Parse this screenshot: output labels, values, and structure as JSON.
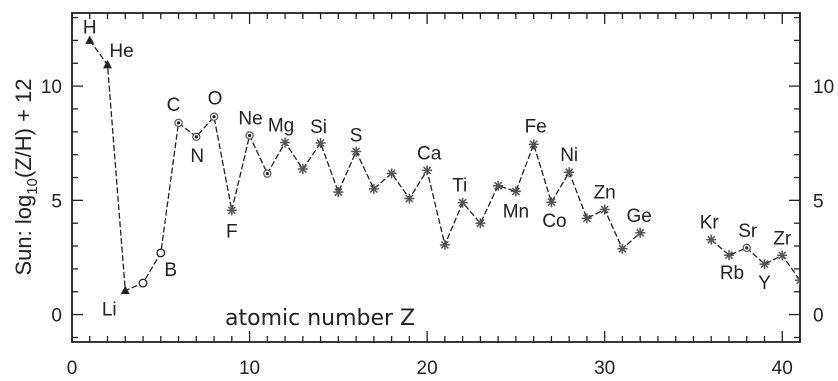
{
  "chart_data": {
    "type": "line",
    "title": "",
    "xlabel": "atomic number Z",
    "ylabel_parts": {
      "prefix": "Sun:  log",
      "subscript": "10",
      "suffix": "(Z/H)  +  12"
    },
    "xlim": [
      0,
      41
    ],
    "ylim": [
      -1.2,
      13.2
    ],
    "xticks": [
      0,
      10,
      20,
      30,
      40
    ],
    "xtick_labels": [
      "0",
      "10",
      "20",
      "30",
      "40"
    ],
    "yticks": [
      0,
      5,
      10
    ],
    "ytick_labels": [
      "0",
      "5",
      "10"
    ],
    "right_ytick_labels": [
      "0",
      "5",
      "10"
    ],
    "grid": false,
    "segments": [
      [
        {
          "z": 1,
          "y": 12.0,
          "symbol": "H",
          "marker": "triangle"
        },
        {
          "z": 2,
          "y": 10.93,
          "symbol": "He",
          "marker": "triangle"
        },
        {
          "z": 3,
          "y": 1.05,
          "symbol": "Li",
          "marker": "triangle"
        },
        {
          "z": 4,
          "y": 1.38,
          "symbol": "",
          "marker": "open-circle"
        },
        {
          "z": 5,
          "y": 2.7,
          "symbol": "B",
          "marker": "open-circle"
        },
        {
          "z": 6,
          "y": 8.39,
          "symbol": "C",
          "marker": "dot-circle"
        },
        {
          "z": 7,
          "y": 7.78,
          "symbol": "N",
          "marker": "dot-circle"
        },
        {
          "z": 8,
          "y": 8.66,
          "symbol": "O",
          "marker": "dot-circle"
        },
        {
          "z": 9,
          "y": 4.56,
          "symbol": "F",
          "marker": "star"
        },
        {
          "z": 10,
          "y": 7.84,
          "symbol": "Ne",
          "marker": "dot-circle"
        },
        {
          "z": 11,
          "y": 6.17,
          "symbol": "",
          "marker": "dot-circle"
        },
        {
          "z": 12,
          "y": 7.53,
          "symbol": "Mg",
          "marker": "star"
        },
        {
          "z": 13,
          "y": 6.37,
          "symbol": "",
          "marker": "star"
        },
        {
          "z": 14,
          "y": 7.51,
          "symbol": "Si",
          "marker": "star"
        },
        {
          "z": 15,
          "y": 5.36,
          "symbol": "",
          "marker": "star"
        },
        {
          "z": 16,
          "y": 7.14,
          "symbol": "S",
          "marker": "star"
        },
        {
          "z": 17,
          "y": 5.5,
          "symbol": "",
          "marker": "star"
        },
        {
          "z": 18,
          "y": 6.18,
          "symbol": "",
          "marker": "star"
        },
        {
          "z": 19,
          "y": 5.08,
          "symbol": "",
          "marker": "star"
        },
        {
          "z": 20,
          "y": 6.31,
          "symbol": "Ca",
          "marker": "star"
        },
        {
          "z": 21,
          "y": 3.05,
          "symbol": "",
          "marker": "star"
        },
        {
          "z": 22,
          "y": 4.9,
          "symbol": "Ti",
          "marker": "star"
        },
        {
          "z": 23,
          "y": 4.0,
          "symbol": "",
          "marker": "star"
        },
        {
          "z": 24,
          "y": 5.64,
          "symbol": "",
          "marker": "star"
        },
        {
          "z": 25,
          "y": 5.39,
          "symbol": "Mn",
          "marker": "star"
        },
        {
          "z": 26,
          "y": 7.45,
          "symbol": "Fe",
          "marker": "star"
        },
        {
          "z": 27,
          "y": 4.92,
          "symbol": "Co",
          "marker": "star"
        },
        {
          "z": 28,
          "y": 6.23,
          "symbol": "Ni",
          "marker": "star"
        },
        {
          "z": 29,
          "y": 4.21,
          "symbol": "",
          "marker": "star"
        },
        {
          "z": 30,
          "y": 4.6,
          "symbol": "Zn",
          "marker": "star"
        },
        {
          "z": 31,
          "y": 2.88,
          "symbol": "",
          "marker": "star"
        },
        {
          "z": 32,
          "y": 3.58,
          "symbol": "Ge",
          "marker": "star"
        }
      ],
      [
        {
          "z": 36,
          "y": 3.28,
          "symbol": "Kr",
          "marker": "star"
        },
        {
          "z": 37,
          "y": 2.6,
          "symbol": "Rb",
          "marker": "star"
        },
        {
          "z": 38,
          "y": 2.92,
          "symbol": "Sr",
          "marker": "dot-circle"
        },
        {
          "z": 39,
          "y": 2.21,
          "symbol": "Y",
          "marker": "star"
        },
        {
          "z": 40,
          "y": 2.59,
          "symbol": "Zr",
          "marker": "star"
        },
        {
          "z": 41,
          "y": 1.5,
          "symbol": "",
          "marker": "star"
        }
      ]
    ],
    "colors": {
      "line": "#222222",
      "marker": "#555555",
      "text": "#222222"
    }
  }
}
